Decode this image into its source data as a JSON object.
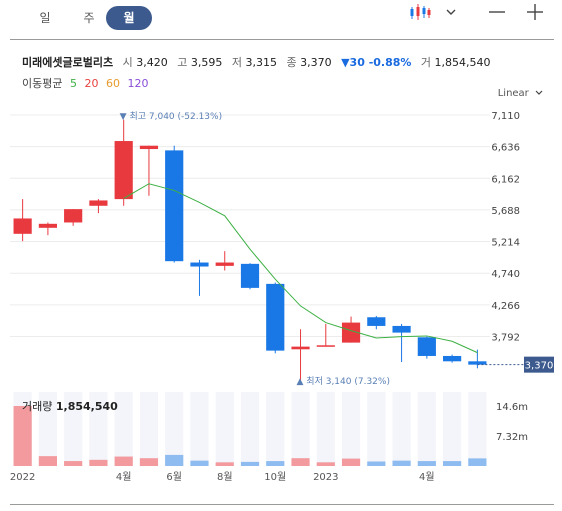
{
  "tabs": [
    {
      "label": "일",
      "active": false
    },
    {
      "label": "주",
      "active": false
    },
    {
      "label": "월",
      "active": true
    }
  ],
  "icons": {
    "chart_type": "candlestick-icon",
    "dropdown": "chevron-down-icon",
    "zoom_out": "minus-icon",
    "zoom_in": "plus-icon"
  },
  "stock": {
    "name": "미래에셋글로벌리츠",
    "open_label": "시",
    "open": "3,420",
    "high_label": "고",
    "high": "3,595",
    "low_label": "저",
    "low": "3,315",
    "close_label": "종",
    "close": "3,370",
    "change": "▼30 -0.88%",
    "volume_label": "거",
    "volume": "1,854,540"
  },
  "ma": {
    "label": "이동평균",
    "periods": [
      {
        "value": "5",
        "color": "#3cb043"
      },
      {
        "value": "20",
        "color": "#e8423f"
      },
      {
        "value": "60",
        "color": "#e89a2c"
      },
      {
        "value": "120",
        "color": "#8a4fd8"
      }
    ]
  },
  "scale_mode": "Linear",
  "colors": {
    "up": "#e8393f",
    "down": "#1a78e6",
    "ma5": "#3cb043",
    "last_badge": "#3c5a8e"
  },
  "chart_data": {
    "type": "candlestick",
    "ylim": [
      3140,
      7110
    ],
    "y_ticks": [
      "7,110",
      "6,636",
      "6,162",
      "5,688",
      "5,214",
      "4,740",
      "4,266",
      "3,792",
      "3,370"
    ],
    "y_tick_values": [
      7110,
      6636,
      6162,
      5688,
      5214,
      4740,
      4266,
      3792
    ],
    "last_price": "3,370",
    "last_price_value": 3370,
    "max_annotation": "최고 7,040 (-52.13%)",
    "max_value": 7040,
    "max_index": 4,
    "min_annotation": "최저 3,140 (7.32%)",
    "min_value": 3140,
    "min_index": 11,
    "x_labels": [
      {
        "index": 0,
        "label": "2022"
      },
      {
        "index": 4,
        "label": "4월"
      },
      {
        "index": 6,
        "label": "6월"
      },
      {
        "index": 8,
        "label": "8월"
      },
      {
        "index": 10,
        "label": "10월"
      },
      {
        "index": 12,
        "label": "2023"
      },
      {
        "index": 16,
        "label": "4월"
      }
    ],
    "candles": [
      {
        "o": 5330,
        "h": 5850,
        "l": 5220,
        "c": 5560
      },
      {
        "o": 5420,
        "h": 5500,
        "l": 5310,
        "c": 5480
      },
      {
        "o": 5500,
        "h": 5700,
        "l": 5450,
        "c": 5700
      },
      {
        "o": 5750,
        "h": 5850,
        "l": 5640,
        "c": 5830
      },
      {
        "o": 5850,
        "h": 7040,
        "l": 5750,
        "c": 6720
      },
      {
        "o": 6600,
        "h": 6650,
        "l": 5900,
        "c": 6650
      },
      {
        "o": 6580,
        "h": 6650,
        "l": 4900,
        "c": 4920
      },
      {
        "o": 4900,
        "h": 4940,
        "l": 4400,
        "c": 4840
      },
      {
        "o": 4850,
        "h": 5070,
        "l": 4780,
        "c": 4900
      },
      {
        "o": 4880,
        "h": 4890,
        "l": 4500,
        "c": 4520
      },
      {
        "o": 4580,
        "h": 4600,
        "l": 3540,
        "c": 3580
      },
      {
        "o": 3600,
        "h": 3900,
        "l": 3140,
        "c": 3640
      },
      {
        "o": 3660,
        "h": 3980,
        "l": 3650,
        "c": 3660
      },
      {
        "o": 3700,
        "h": 4090,
        "l": 3700,
        "c": 4000
      },
      {
        "o": 4080,
        "h": 4100,
        "l": 3900,
        "c": 3950
      },
      {
        "o": 3950,
        "h": 3980,
        "l": 3410,
        "c": 3850
      },
      {
        "o": 3780,
        "h": 3790,
        "l": 3460,
        "c": 3500
      },
      {
        "o": 3500,
        "h": 3520,
        "l": 3400,
        "c": 3420
      },
      {
        "o": 3420,
        "h": 3595,
        "l": 3315,
        "c": 3370
      }
    ],
    "ma5": [
      null,
      null,
      null,
      null,
      5860,
      6080,
      5980,
      5800,
      5600,
      5100,
      4650,
      4250,
      4000,
      3880,
      3770,
      3790,
      3800,
      3720,
      3550
    ],
    "volume": {
      "label": "거래량",
      "value": "1,854,540",
      "y_ticks": [
        "14.6m",
        "7.32m"
      ],
      "y_tick_values": [
        14600000,
        7320000
      ],
      "ymax": 18000000,
      "values": [
        14600000,
        2400000,
        1200000,
        1500000,
        2300000,
        1900000,
        2700000,
        1300000,
        900000,
        1000000,
        1200000,
        1900000,
        900000,
        1800000,
        1100000,
        1300000,
        1200000,
        1200000,
        1854540
      ]
    }
  }
}
